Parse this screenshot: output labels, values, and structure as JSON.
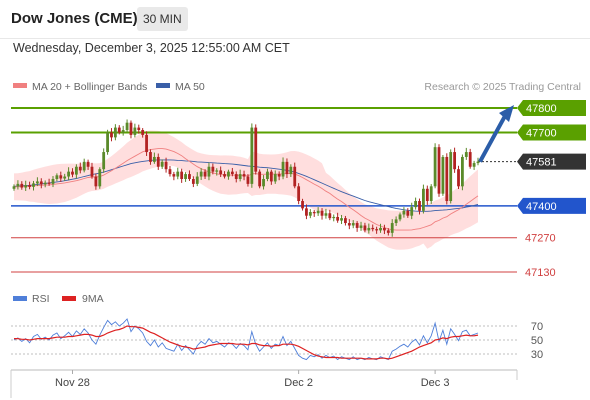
{
  "header": {
    "title": "Dow Jones (CME)",
    "timeframe": "30 MIN",
    "date": "Wednesday, December 3, 2025 12:55:00 AM CET"
  },
  "legend": {
    "ma20": "MA 20 + Bollinger Bands",
    "ma50": "MA 50",
    "copyright": "Research © 2025 Trading Central",
    "rsi": "RSI",
    "rsi_ma": "9MA"
  },
  "colors": {
    "ma20": "#f08080",
    "ma50": "#3a5fa8",
    "band": "#ffd8d8",
    "candle_up": "#5a8a2a",
    "candle_down": "#b22222",
    "resistance": "#5aa000",
    "support": "#2255cc",
    "lower": "#d04040",
    "rsi": "#4f7fd9",
    "rsi_ma": "#dd2222",
    "arrow": "#2b5da8"
  },
  "levels": [
    {
      "value": 47800,
      "label": "47800",
      "style": "resistance"
    },
    {
      "value": 47700,
      "label": "47700",
      "style": "resistance"
    },
    {
      "value": 47581,
      "label": "47581",
      "style": "current"
    },
    {
      "value": 47400,
      "label": "47400",
      "style": "support"
    },
    {
      "value": 47270,
      "label": "47270",
      "style": "lower"
    },
    {
      "value": 47130,
      "label": "47130",
      "style": "lower"
    }
  ],
  "rsi_ticks": [
    "70",
    "50",
    "30"
  ],
  "chart_data": {
    "type": "candlestick",
    "x_labels": [
      {
        "label": "Nov 28",
        "bar": 15
      },
      {
        "label": "Dec 2",
        "bar": 73
      },
      {
        "label": "Dec 3",
        "bar": 108
      }
    ],
    "price_range": [
      47110,
      47830
    ],
    "candles": [
      [
        47470,
        47480
      ],
      [
        47480,
        47490
      ],
      [
        47490,
        47475
      ],
      [
        47475,
        47485
      ],
      [
        47485,
        47478
      ],
      [
        47478,
        47492
      ],
      [
        47492,
        47500
      ],
      [
        47500,
        47488
      ],
      [
        47488,
        47495
      ],
      [
        47495,
        47490
      ],
      [
        47490,
        47510
      ],
      [
        47510,
        47525
      ],
      [
        47525,
        47512
      ],
      [
        47512,
        47520
      ],
      [
        47520,
        47540
      ],
      [
        47540,
        47528
      ],
      [
        47528,
        47560
      ],
      [
        47560,
        47545
      ],
      [
        47545,
        47580
      ],
      [
        47580,
        47560
      ],
      [
        47560,
        47520
      ],
      [
        47520,
        47480
      ],
      [
        47480,
        47550
      ],
      [
        47550,
        47620
      ],
      [
        47620,
        47700
      ],
      [
        47700,
        47680
      ],
      [
        47680,
        47720
      ],
      [
        47720,
        47700
      ],
      [
        47700,
        47710
      ],
      [
        47710,
        47740
      ],
      [
        47740,
        47690
      ],
      [
        47690,
        47720
      ],
      [
        47720,
        47710
      ],
      [
        47710,
        47690
      ],
      [
        47690,
        47620
      ],
      [
        47620,
        47580
      ],
      [
        47580,
        47600
      ],
      [
        47600,
        47560
      ],
      [
        47560,
        47580
      ],
      [
        47580,
        47550
      ],
      [
        47550,
        47530
      ],
      [
        47530,
        47520
      ],
      [
        47520,
        47540
      ],
      [
        47540,
        47510
      ],
      [
        47510,
        47530
      ],
      [
        47530,
        47510
      ],
      [
        47510,
        47490
      ],
      [
        47490,
        47520
      ],
      [
        47520,
        47540
      ],
      [
        47540,
        47520
      ],
      [
        47520,
        47560
      ],
      [
        47560,
        47540
      ],
      [
        47540,
        47545
      ],
      [
        47545,
        47530
      ],
      [
        47530,
        47520
      ],
      [
        47520,
        47540
      ],
      [
        47540,
        47530
      ],
      [
        47530,
        47510
      ],
      [
        47510,
        47530
      ],
      [
        47530,
        47520
      ],
      [
        47520,
        47490
      ],
      [
        47490,
        47720
      ],
      [
        47720,
        47540
      ],
      [
        47540,
        47480
      ],
      [
        47480,
        47510
      ],
      [
        47510,
        47540
      ],
      [
        47540,
        47500
      ],
      [
        47500,
        47530
      ],
      [
        47530,
        47520
      ],
      [
        47520,
        47580
      ],
      [
        47580,
        47530
      ],
      [
        47530,
        47560
      ],
      [
        47560,
        47480
      ],
      [
        47480,
        47420
      ],
      [
        47420,
        47390
      ],
      [
        47390,
        47360
      ],
      [
        47360,
        47375
      ],
      [
        47375,
        47370
      ],
      [
        47370,
        47380
      ],
      [
        47380,
        47360
      ],
      [
        47360,
        47370
      ],
      [
        47370,
        47350
      ],
      [
        47350,
        47355
      ],
      [
        47355,
        47340
      ],
      [
        47340,
        47350
      ],
      [
        47350,
        47330
      ],
      [
        47330,
        47320
      ],
      [
        47320,
        47330
      ],
      [
        47330,
        47310
      ],
      [
        47310,
        47320
      ],
      [
        47320,
        47300
      ],
      [
        47300,
        47310
      ],
      [
        47310,
        47305
      ],
      [
        47305,
        47300
      ],
      [
        47300,
        47310
      ],
      [
        47310,
        47300
      ],
      [
        47300,
        47290
      ],
      [
        47290,
        47330
      ],
      [
        47330,
        47345
      ],
      [
        47345,
        47365
      ],
      [
        47365,
        47380
      ],
      [
        47380,
        47360
      ],
      [
        47360,
        47395
      ],
      [
        47395,
        47420
      ],
      [
        47420,
        47380
      ],
      [
        47380,
        47470
      ],
      [
        47470,
        47420
      ],
      [
        47420,
        47480
      ],
      [
        47480,
        47640
      ],
      [
        47640,
        47450
      ],
      [
        47450,
        47600
      ],
      [
        47600,
        47420
      ],
      [
        47420,
        47620
      ],
      [
        47620,
        47550
      ],
      [
        47550,
        47480
      ],
      [
        47480,
        47600
      ],
      [
        47600,
        47620
      ],
      [
        47620,
        47560
      ],
      [
        47560,
        47575
      ],
      [
        47575,
        47581
      ]
    ],
    "ma20": [
      47478,
      47478,
      47479,
      47480,
      47480,
      47482,
      47483,
      47484,
      47485,
      47486,
      47488,
      47490,
      47492,
      47494,
      47497,
      47500,
      47503,
      47507,
      47512,
      47516,
      47518,
      47518,
      47520,
      47526,
      47535,
      47544,
      47554,
      47564,
      47574,
      47585,
      47594,
      47603,
      47612,
      47621,
      47626,
      47630,
      47632,
      47634,
      47634,
      47632,
      47627,
      47622,
      47614,
      47605,
      47593,
      47582,
      47571,
      47560,
      47552,
      47545,
      47539,
      47535,
      47531,
      47528,
      47527,
      47526,
      47526,
      47525,
      47525,
      47524,
      47522,
      47531,
      47532,
      47529,
      47529,
      47530,
      47530,
      47530,
      47530,
      47531,
      47532,
      47533,
      47530,
      47524,
      47516,
      47507,
      47498,
      47489,
      47481,
      47471,
      47460,
      47451,
      47439,
      47428,
      47418,
      47406,
      47395,
      47384,
      47373,
      47361,
      47350,
      47342,
      47333,
      47324,
      47318,
      47312,
      47306,
      47303,
      47301,
      47301,
      47301,
      47301,
      47302,
      47305,
      47307,
      47312,
      47317,
      47323,
      47335,
      47341,
      47350,
      47356,
      47367,
      47376,
      47384,
      47395,
      47407,
      47418,
      47430,
      47441
    ],
    "ma50": [
      47480,
      47481,
      47482,
      47483,
      47484,
      47486,
      47488,
      47490,
      47492,
      47494,
      47496,
      47498,
      47500,
      47503,
      47506,
      47509,
      47512,
      47516,
      47520,
      47524,
      47528,
      47531,
      47534,
      47538,
      47543,
      47548,
      47553,
      47558,
      47563,
      47568,
      47573,
      47576,
      47579,
      47582,
      47584,
      47586,
      47587,
      47588,
      47588,
      47588,
      47588,
      47587,
      47586,
      47585,
      47584,
      47583,
      47582,
      47580,
      47579,
      47578,
      47577,
      47576,
      47575,
      47574,
      47573,
      47572,
      47571,
      47569,
      47567,
      47565,
      47563,
      47562,
      47560,
      47558,
      47557,
      47556,
      47554,
      47552,
      47550,
      47548,
      47545,
      47542,
      47538,
      47533,
      47527,
      47521,
      47514,
      47507,
      47500,
      47493,
      47486,
      47479,
      47472,
      47465,
      47458,
      47452,
      47446,
      47440,
      47434,
      47428,
      47422,
      47417,
      47413,
      47409,
      47405,
      47401,
      47397,
      47393,
      47390,
      47387,
      47384,
      47382,
      47380,
      47379,
      47378,
      47378,
      47378,
      47379,
      47381,
      47382,
      47383,
      47384,
      47386,
      47388,
      47390,
      47392,
      47395,
      47398,
      47402,
      47406
    ],
    "rsi": [
      50,
      53,
      48,
      52,
      46,
      55,
      58,
      51,
      54,
      50,
      57,
      60,
      52,
      56,
      61,
      55,
      63,
      58,
      66,
      60,
      50,
      44,
      57,
      68,
      78,
      72,
      76,
      70,
      74,
      80,
      62,
      70,
      66,
      60,
      48,
      42,
      50,
      40,
      46,
      38,
      36,
      34,
      44,
      35,
      42,
      36,
      30,
      42,
      48,
      44,
      52,
      46,
      48,
      44,
      40,
      46,
      44,
      38,
      45,
      42,
      36,
      62,
      44,
      34,
      40,
      46,
      38,
      44,
      42,
      55,
      42,
      48,
      38,
      28,
      24,
      22,
      28,
      26,
      29,
      24,
      28,
      25,
      27,
      22,
      26,
      24,
      22,
      26,
      22,
      24,
      22,
      25,
      23,
      22,
      26,
      24,
      22,
      34,
      37,
      41,
      44,
      40,
      47,
      51,
      43,
      56,
      46,
      56,
      74,
      48,
      64,
      44,
      66,
      58,
      49,
      62,
      64,
      56,
      58,
      60
    ],
    "rsi_ma": [
      52,
      52,
      51,
      51,
      50,
      51,
      52,
      52,
      52,
      52,
      53,
      54,
      54,
      54,
      55,
      55,
      56,
      57,
      58,
      58,
      57,
      55,
      55,
      57,
      60,
      62,
      64,
      65,
      67,
      70,
      69,
      69,
      68,
      67,
      64,
      61,
      59,
      56,
      53,
      50,
      47,
      45,
      43,
      41,
      40,
      39,
      37,
      38,
      39,
      40,
      42,
      43,
      44,
      45,
      45,
      45,
      45,
      44,
      44,
      44,
      43,
      45,
      45,
      43,
      42,
      42,
      41,
      42,
      42,
      44,
      44,
      44,
      43,
      41,
      38,
      35,
      32,
      29,
      27,
      26,
      25,
      25,
      25,
      25,
      24,
      24,
      24,
      24,
      24,
      24,
      23,
      23,
      23,
      23,
      24,
      24,
      23,
      24,
      26,
      28,
      30,
      32,
      34,
      37,
      40,
      42,
      44,
      46,
      50,
      51,
      53,
      52,
      54,
      55,
      55,
      56,
      57,
      56,
      56,
      57
    ],
    "rsi_range": [
      10,
      90
    ]
  }
}
